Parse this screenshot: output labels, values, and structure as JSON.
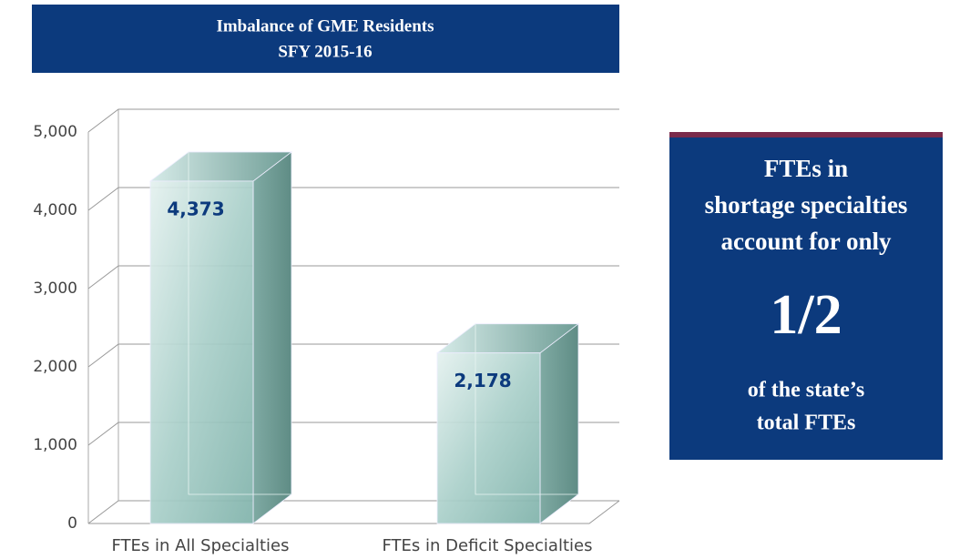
{
  "chart_data": {
    "type": "bar3d",
    "title": "Imbalance of GME Residents",
    "subtitle": "SFY 2015-16",
    "categories": [
      "FTEs in All Specialties",
      "FTEs in Deficit Specialties"
    ],
    "values": [
      4373,
      2178
    ],
    "value_labels": [
      "4,373",
      "2,178"
    ],
    "ylim": [
      0,
      5000
    ],
    "yticks": [
      0,
      {
        "value": 1000,
        "label": "1,000"
      },
      {
        "value": 2000,
        "label": "2,000"
      },
      {
        "value": 3000,
        "label": "3,000"
      },
      {
        "value": 4000,
        "label": "4,000"
      },
      {
        "value": 5000,
        "label": "5,000"
      }
    ],
    "grid": true,
    "color": "#8fbcb5",
    "annotations": [
      "FTEs in",
      "shortage specialties",
      "account for only",
      "1/2",
      "of the state’s",
      "total FTEs"
    ]
  }
}
